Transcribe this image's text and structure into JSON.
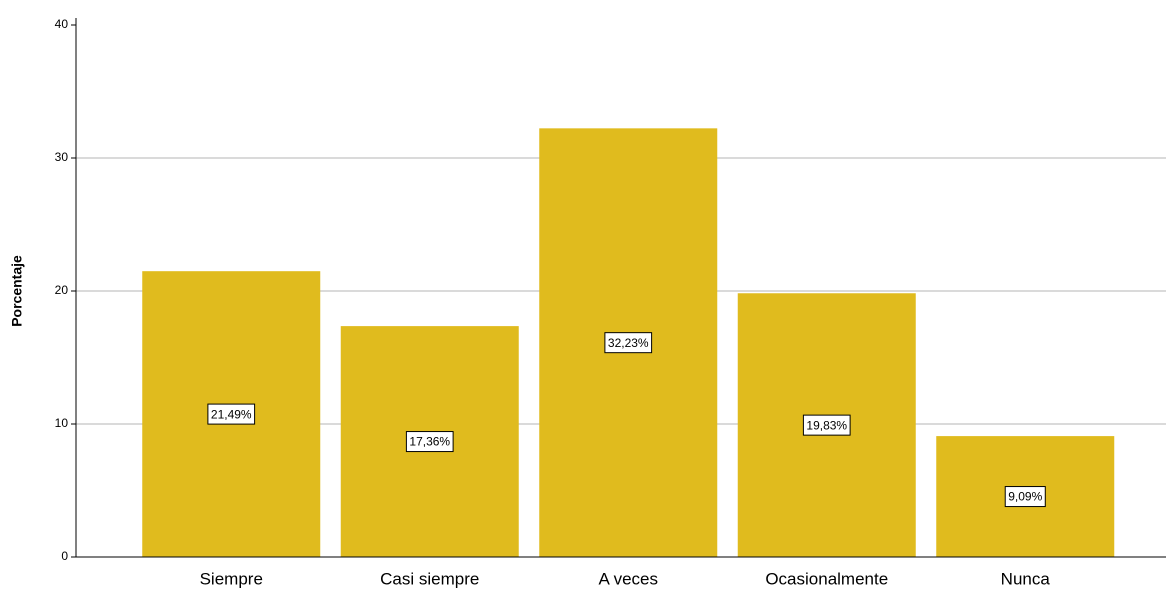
{
  "chart_data": {
    "type": "bar",
    "y_label": "Porcentaje",
    "categories": [
      "Siempre",
      "Casi siempre",
      "A veces",
      "Ocasionalmente",
      "Nunca"
    ],
    "values": [
      21.49,
      17.36,
      32.23,
      19.83,
      9.09
    ],
    "value_labels": [
      "21,49%",
      "17,36%",
      "32,23%",
      "19,83%",
      "9,09%"
    ],
    "color": "#e0bb1e",
    "ylim": [
      0,
      40
    ],
    "yticks": [
      0,
      10,
      20,
      30,
      40
    ],
    "grid": true
  }
}
